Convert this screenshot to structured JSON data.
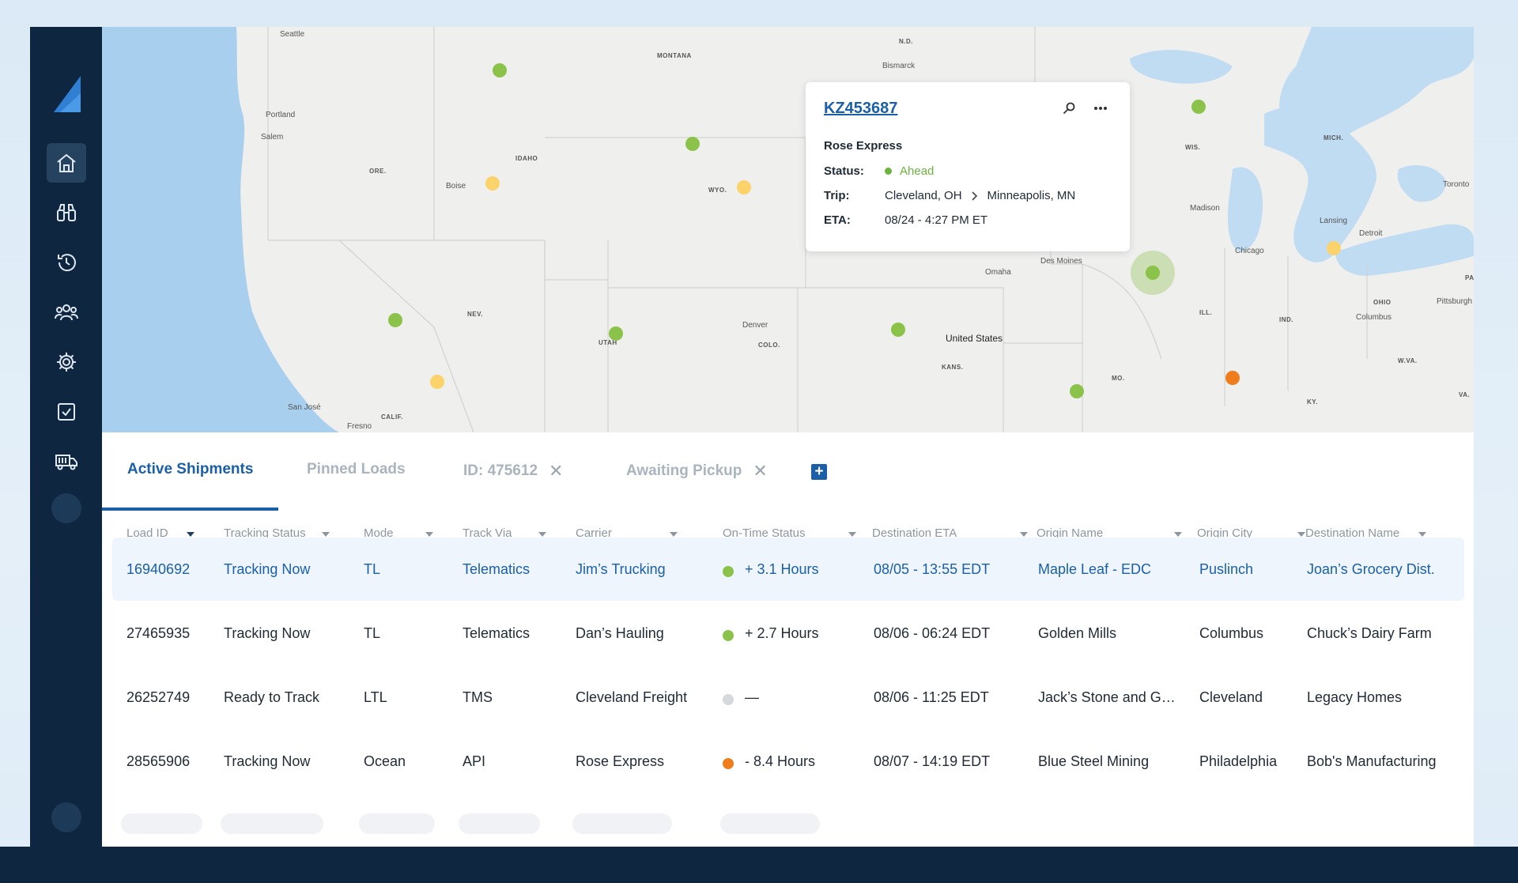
{
  "sidebar": {
    "items": [
      {
        "icon": "home-icon",
        "active": true
      },
      {
        "icon": "binoculars-icon",
        "active": false
      },
      {
        "icon": "history-icon",
        "active": false
      },
      {
        "icon": "people-icon",
        "active": false
      },
      {
        "icon": "gear-icon",
        "active": false
      },
      {
        "icon": "checkbox-icon",
        "active": false
      },
      {
        "icon": "truck-icon",
        "active": false
      }
    ]
  },
  "map": {
    "labels": {
      "seattle": "Seattle",
      "portland": "Portland",
      "salem": "Salem",
      "boise": "Boise",
      "sanjose": "San José",
      "fresno": "Fresno",
      "denver": "Denver",
      "omaha": "Omaha",
      "desmoines": "Des Moines",
      "madison": "Madison",
      "chicago": "Chicago",
      "lansing": "Lansing",
      "detroit": "Detroit",
      "toronto": "Toronto",
      "columbus": "Columbus",
      "pittsburgh": "Pittsburgh",
      "bismarck": "Bismarck",
      "country": "United States"
    },
    "states": {
      "montana": "MONTANA",
      "nd": "N.D.",
      "idaho": "IDAHO",
      "ore": "ORE.",
      "wyo": "WYO.",
      "nev": "NEV.",
      "utah": "UTAH",
      "colo": "COLO.",
      "kans": "KANS.",
      "calif": "CALIF.",
      "mo": "MO.",
      "ill": "ILL.",
      "ind": "IND.",
      "ohio": "OHIO",
      "wis": "WIS.",
      "mich": "MICH.",
      "ky": "KY.",
      "wva": "W.VA.",
      "va": "VA.",
      "pa": "PA"
    }
  },
  "popup": {
    "load_id": "KZ453687",
    "carrier": "Rose Express",
    "status_label": "Status:",
    "status_value": "Ahead",
    "trip_label": "Trip:",
    "trip_origin": "Cleveland, OH",
    "trip_destination": "Minneapolis, MN",
    "eta_label": "ETA:",
    "eta_value": "08/24 - 4:27 PM ET",
    "status_color": "#6db33f"
  },
  "tabs": {
    "active_shipments": "Active Shipments",
    "pinned_loads": "Pinned Loads",
    "id_filter": "ID: 475612",
    "awaiting_pickup": "Awaiting Pickup",
    "close_glyph": "✕",
    "add_glyph": "+"
  },
  "table": {
    "columns": {
      "load_id": "Load ID",
      "tracking_status": "Tracking Status",
      "mode": "Mode",
      "track_via": "Track Via",
      "carrier": "Carrier",
      "on_time_status": "On-Time Status",
      "destination_eta": "Destination ETA",
      "origin_name": "Origin Name",
      "origin_city": "Origin City",
      "destination_name": "Destination Name"
    },
    "rows": [
      {
        "load_id": "16940692",
        "tracking_status": "Tracking Now",
        "mode": "TL",
        "track_via": "Telematics",
        "carrier": "Jim’s Trucking",
        "on_time": "+ 3.1 Hours",
        "on_time_color": "#8bc34a",
        "eta": "08/05 - 13:55 EDT",
        "origin_name": "Maple Leaf - EDC",
        "origin_city": "Puslinch",
        "destination_name": "Joan’s Grocery Dist."
      },
      {
        "load_id": "27465935",
        "tracking_status": "Tracking Now",
        "mode": "TL",
        "track_via": "Telematics",
        "carrier": "Dan’s Hauling",
        "on_time": "+ 2.7 Hours",
        "on_time_color": "#8bc34a",
        "eta": "08/06 - 06:24 EDT",
        "origin_name": "Golden Mills",
        "origin_city": "Columbus",
        "destination_name": "Chuck’s Dairy Farm"
      },
      {
        "load_id": "26252749",
        "tracking_status": "Ready to Track",
        "mode": "LTL",
        "track_via": "TMS",
        "carrier": "Cleveland Freight",
        "on_time": "—",
        "on_time_color": "#d5d8dc",
        "eta": "08/06 - 11:25 EDT",
        "origin_name": "Jack’s Stone and G…",
        "origin_city": "Cleveland",
        "destination_name": "Legacy Homes"
      },
      {
        "load_id": "28565906",
        "tracking_status": "Tracking Now",
        "mode": "Ocean",
        "track_via": "API",
        "carrier": "Rose Express",
        "on_time": "- 8.4 Hours",
        "on_time_color": "#f07d1c",
        "eta": "08/07 - 14:19 EDT",
        "origin_name": "Blue Steel Mining",
        "origin_city": "Philadelphia",
        "destination_name": "Bob's Manufacturing"
      }
    ]
  }
}
